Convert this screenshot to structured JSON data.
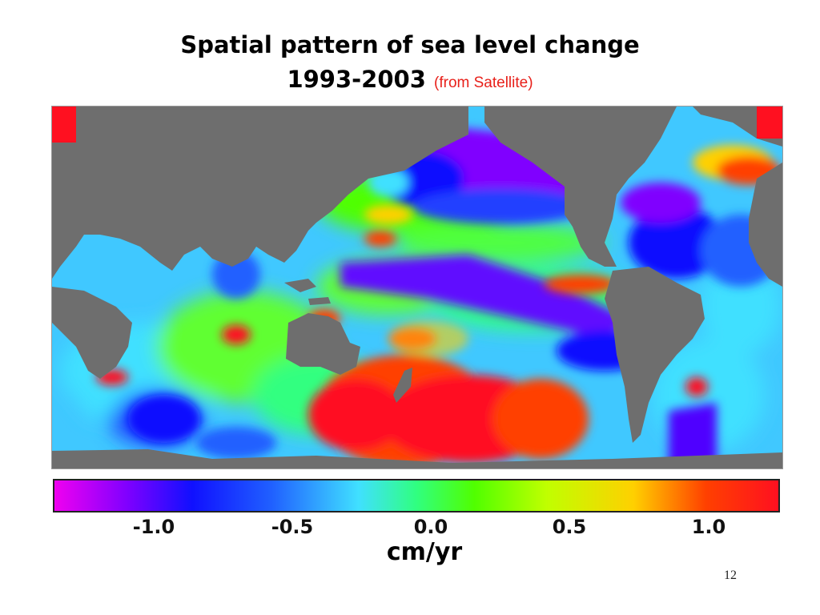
{
  "slide": {
    "title": "Spatial pattern of sea level change",
    "years": "1993-2003",
    "source_note": "(from Satellite)",
    "page_number": "12"
  },
  "colorbar": {
    "ticks": [
      "-1.0",
      "-0.5",
      "0.0",
      "0.5",
      "1.0"
    ],
    "unit": "cm/yr",
    "colors": [
      "#f000f0",
      "#8000ff",
      "#1010ff",
      "#2060ff",
      "#40e0ff",
      "#30ff80",
      "#50ff00",
      "#c0ff00",
      "#ffd000",
      "#ff4000",
      "#ff1020"
    ]
  },
  "map": {
    "land_color": "#6e6e6e",
    "ocean_base_color": "#40c8ff"
  }
}
